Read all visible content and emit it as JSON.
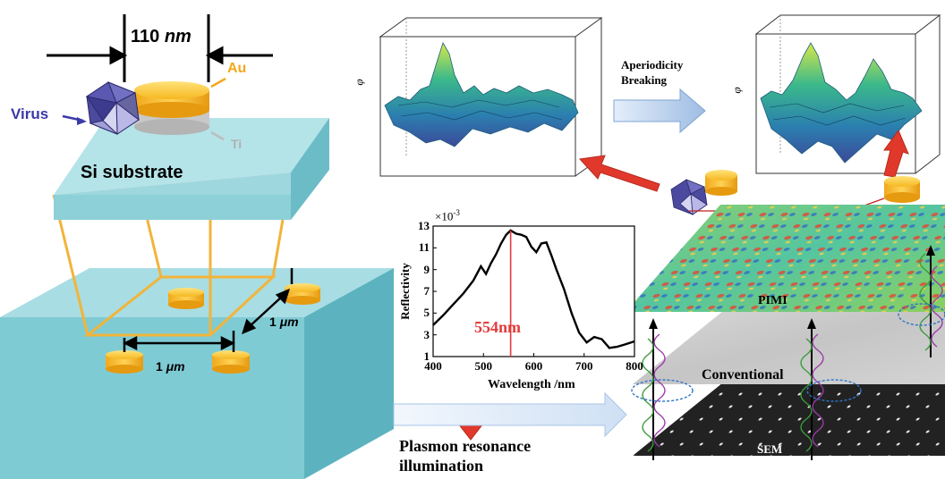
{
  "left_panel": {
    "dimension_value": "110",
    "dimension_unit": "nm",
    "au_label": "Au",
    "ti_label": "Ti",
    "virus_label": "Virus",
    "substrate_label": "Si substrate",
    "pitch_x_value": "1",
    "pitch_x_unit": "μm",
    "pitch_y_value": "1",
    "pitch_y_unit": "μm"
  },
  "right_panel": {
    "phi_label_left": "φ",
    "phi_label_right": "φ",
    "arrow_label_line1": "Aperiodicity",
    "arrow_label_line2": "Breaking",
    "illum_line1": "Plasmon resonance",
    "illum_line2": "illumination",
    "layer_pimi": "PIMI",
    "layer_conventional": "Conventional",
    "layer_sem": "SEM"
  },
  "chart_data": {
    "type": "line",
    "title": "",
    "xlabel": "Wavelength /nm",
    "ylabel": "Reflectivity",
    "y_scale_label": "×10",
    "y_scale_exponent": "-3",
    "xlim": [
      400,
      800
    ],
    "ylim": [
      1,
      13
    ],
    "xticks": [
      400,
      500,
      600,
      700,
      800
    ],
    "yticks": [
      1,
      3,
      5,
      7,
      9,
      11,
      13
    ],
    "marker_x": 554,
    "marker_label": "554nm",
    "colors": {
      "line": "#000000",
      "marker": "#e23b3b"
    },
    "series": [
      {
        "x": [
          400,
          420,
          440,
          460,
          480,
          495,
          505,
          515,
          525,
          535,
          545,
          554,
          565,
          575,
          585,
          595,
          605,
          615,
          625,
          635,
          645,
          660,
          675,
          690,
          705,
          720,
          735,
          750,
          765,
          780,
          800
        ],
        "y": [
          3.9,
          4.8,
          5.8,
          6.8,
          8.0,
          9.3,
          8.6,
          9.6,
          10.4,
          11.4,
          12.2,
          12.6,
          12.3,
          12.2,
          12.0,
          11.1,
          10.6,
          11.4,
          11.5,
          10.3,
          9.0,
          7.2,
          5.0,
          3.2,
          2.3,
          2.8,
          2.6,
          1.8,
          1.9,
          2.1,
          2.4
        ]
      }
    ]
  }
}
